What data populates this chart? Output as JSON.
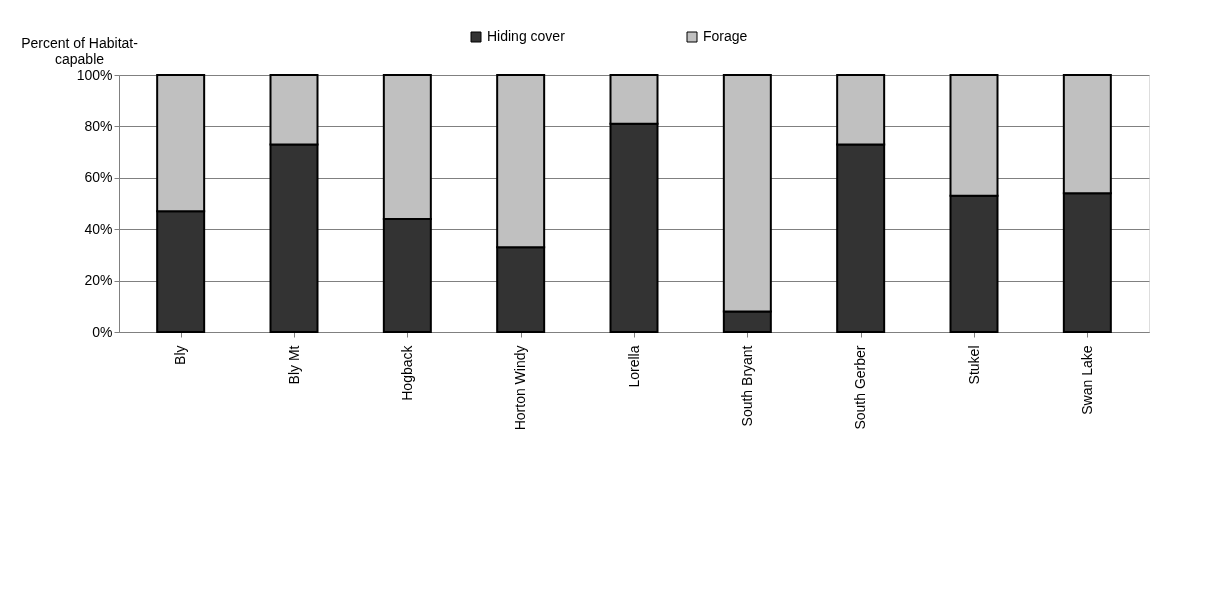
{
  "chart_data": {
    "type": "bar",
    "stacked": true,
    "ylabel": "Percent of Habitat-capable",
    "categories": [
      "Bly",
      "Bly Mt",
      "Hogback",
      "Horton Windy",
      "Lorella",
      "South Bryant",
      "South Gerber",
      "Stukel",
      "Swan Lake"
    ],
    "series": [
      {
        "name": "Hiding cover",
        "color": "#333333",
        "values": [
          47,
          73,
          44,
          33,
          81,
          8,
          73,
          53,
          54
        ]
      },
      {
        "name": "Forage",
        "color": "#c0c0c0",
        "values": [
          53,
          27,
          56,
          67,
          19,
          92,
          27,
          47,
          46
        ]
      }
    ],
    "ylim": [
      0,
      100
    ],
    "yticks": [
      {
        "value": 0,
        "label": "0%"
      },
      {
        "value": 20,
        "label": "20%"
      },
      {
        "value": 40,
        "label": "40%"
      },
      {
        "value": 60,
        "label": "60%"
      },
      {
        "value": 80,
        "label": "80%"
      },
      {
        "value": 100,
        "label": "100%"
      }
    ],
    "grid": "y",
    "legend": "top"
  }
}
